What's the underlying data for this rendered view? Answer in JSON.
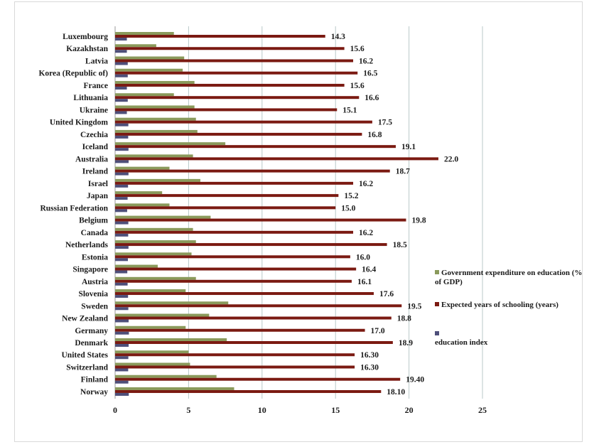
{
  "chart_data": {
    "type": "bar",
    "orientation": "horizontal",
    "categories": [
      "Luxembourg",
      "Kazakhstan",
      "Latvia",
      "Korea (Republic of)",
      "France",
      "Lithuania",
      "Ukraine",
      "United Kingdom",
      "Czechia",
      "Iceland",
      "Australia",
      "Ireland",
      "Israel",
      "Japan",
      "Russian Federation",
      "Belgium",
      "Canada",
      "Netherlands",
      "Estonia",
      "Singapore",
      "Austria",
      "Slovenia",
      "Sweden",
      "New Zealand",
      "Germany",
      "Denmark",
      "United States",
      "Switzerland",
      "Finland",
      "Norway"
    ],
    "series": [
      {
        "name": "Government expenditure on education (% of GDP)",
        "color": "#8a9a5b",
        "values": [
          4.0,
          2.8,
          4.7,
          4.6,
          5.4,
          4.0,
          5.4,
          5.5,
          5.6,
          7.5,
          5.3,
          3.7,
          5.8,
          3.2,
          3.7,
          6.5,
          5.3,
          5.5,
          5.2,
          2.9,
          5.5,
          4.8,
          7.7,
          6.4,
          4.8,
          7.6,
          5.0,
          5.1,
          6.9,
          8.1
        ]
      },
      {
        "name": "Expected years of schooling (years)",
        "color": "#7b1a12",
        "values": [
          14.3,
          15.6,
          16.2,
          16.5,
          15.6,
          16.6,
          15.1,
          17.5,
          16.8,
          19.1,
          22.0,
          18.7,
          16.2,
          15.2,
          15.0,
          19.8,
          16.2,
          18.5,
          16.0,
          16.4,
          16.1,
          17.6,
          19.5,
          18.8,
          17.0,
          18.9,
          16.3,
          16.3,
          19.4,
          18.1
        ],
        "labels": [
          "14.3",
          "15.6",
          "16.2",
          "16.5",
          "15.6",
          "16.6",
          "15.1",
          "17.5",
          "16.8",
          "19.1",
          "22.0",
          "18.7",
          "16.2",
          "15.2",
          "15.0",
          "19.8",
          "16.2",
          "18.5",
          "16.0",
          "16.4",
          "16.1",
          "17.6",
          "19.5",
          "18.8",
          "17.0",
          "18.9",
          "16.30",
          "16.30",
          "19.40",
          "18.10"
        ]
      },
      {
        "name": "education index",
        "color": "#4e4f7a",
        "values": [
          0.8,
          0.8,
          0.86,
          0.86,
          0.8,
          0.86,
          0.8,
          0.9,
          0.89,
          0.91,
          0.92,
          0.91,
          0.88,
          0.85,
          0.82,
          0.9,
          0.89,
          0.91,
          0.87,
          0.83,
          0.85,
          0.88,
          0.9,
          0.92,
          0.94,
          0.92,
          0.9,
          0.89,
          0.9,
          0.93
        ]
      }
    ],
    "xticks": [
      "0",
      "5",
      "10",
      "15",
      "20",
      "25"
    ],
    "xlim": [
      0,
      25
    ],
    "grid": "vertical",
    "legend": "right"
  }
}
